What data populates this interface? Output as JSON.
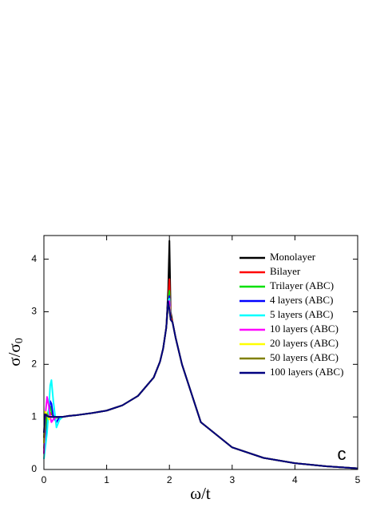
{
  "chart_data": {
    "type": "line",
    "x_label": "ω/t",
    "y_label": {
      "text": "σ/σ",
      "subscript": "0"
    },
    "annotation": "c",
    "legend": "upper right",
    "xlim": [
      0,
      5
    ],
    "xticks": [
      0,
      1,
      2,
      3,
      4,
      5
    ],
    "ylim": [
      0,
      4.45
    ],
    "yticks": [
      0,
      1,
      2,
      3,
      4
    ],
    "x": [
      0,
      0.02,
      0.05,
      0.08,
      0.1,
      0.12,
      0.15,
      0.2,
      0.25,
      0.3,
      0.4,
      0.5,
      0.75,
      1,
      1.25,
      1.5,
      1.75,
      1.85,
      1.9,
      1.95,
      1.98,
      2.0,
      2.02,
      2.05,
      2.1,
      2.2,
      2.5,
      3,
      3.5,
      4,
      4.5,
      5
    ],
    "series": [
      {
        "name": "Monolayer",
        "color": "#000000",
        "values": [
          1,
          1,
          1,
          1,
          1,
          1,
          1,
          1,
          1,
          1.0,
          1.02,
          1.03,
          1.07,
          1.12,
          1.22,
          1.4,
          1.75,
          2.05,
          2.3,
          2.7,
          3.4,
          4.35,
          3.0,
          2.8,
          2.5,
          2.0,
          0.9,
          0.42,
          0.22,
          0.12,
          0.06,
          0.02
        ]
      },
      {
        "name": "Bilayer",
        "color": "#ff0000",
        "values": [
          0.5,
          0.8,
          1.05,
          1.1,
          1.08,
          1.05,
          1.02,
          1.0,
          1.0,
          1.0,
          1.02,
          1.03,
          1.07,
          1.12,
          1.22,
          1.4,
          1.75,
          2.05,
          2.3,
          2.7,
          3.2,
          3.62,
          2.9,
          2.8,
          2.5,
          2.0,
          0.9,
          0.42,
          0.22,
          0.12,
          0.06,
          0.02
        ]
      },
      {
        "name": "Trilayer (ABC)",
        "color": "#00e000",
        "values": [
          0.4,
          0.7,
          1.0,
          1.15,
          1.2,
          1.1,
          1.0,
          0.98,
          1.0,
          1.0,
          1.02,
          1.03,
          1.07,
          1.12,
          1.22,
          1.4,
          1.75,
          2.05,
          2.3,
          2.7,
          3.2,
          3.4,
          2.85,
          2.8,
          2.5,
          2.0,
          0.9,
          0.42,
          0.22,
          0.12,
          0.06,
          0.02
        ]
      },
      {
        "name": "4 layers (ABC)",
        "color": "#0000ff",
        "values": [
          0.3,
          0.5,
          0.8,
          1.1,
          1.3,
          1.25,
          1.0,
          0.9,
          1.0,
          1.0,
          1.02,
          1.03,
          1.07,
          1.12,
          1.22,
          1.4,
          1.75,
          2.05,
          2.3,
          2.7,
          3.2,
          3.3,
          2.85,
          2.8,
          2.5,
          2.0,
          0.9,
          0.42,
          0.22,
          0.12,
          0.06,
          0.02
        ]
      },
      {
        "name": "5 layers (ABC)",
        "color": "#00ffff",
        "values": [
          0.2,
          0.4,
          0.7,
          1.2,
          1.6,
          1.7,
          1.3,
          0.8,
          0.95,
          1.0,
          1.02,
          1.03,
          1.07,
          1.12,
          1.22,
          1.4,
          1.75,
          2.05,
          2.3,
          2.7,
          3.2,
          3.25,
          2.85,
          2.8,
          2.5,
          2.0,
          0.9,
          0.42,
          0.22,
          0.12,
          0.06,
          0.02
        ]
      },
      {
        "name": "10 layers (ABC)",
        "color": "#ff00ff",
        "values": [
          0.3,
          1.0,
          1.38,
          1.2,
          1.0,
          0.9,
          0.95,
          1.0,
          1.0,
          1.0,
          1.02,
          1.03,
          1.07,
          1.12,
          1.22,
          1.4,
          1.75,
          2.05,
          2.3,
          2.7,
          3.2,
          3.2,
          2.85,
          2.8,
          2.5,
          2.0,
          0.9,
          0.42,
          0.22,
          0.12,
          0.06,
          0.02
        ]
      },
      {
        "name": "20 layers (ABC)",
        "color": "#ffff00",
        "values": [
          0.5,
          1.1,
          1.05,
          0.95,
          1.0,
          1.0,
          1.0,
          1.0,
          1.0,
          1.0,
          1.02,
          1.03,
          1.07,
          1.12,
          1.22,
          1.4,
          1.75,
          2.05,
          2.3,
          2.7,
          3.15,
          3.1,
          2.85,
          2.8,
          2.5,
          2.0,
          0.9,
          0.42,
          0.22,
          0.12,
          0.06,
          0.02
        ]
      },
      {
        "name": "50 layers (ABC)",
        "color": "#808000",
        "values": [
          0.6,
          1.05,
          1.05,
          1.0,
          1.0,
          1.0,
          1.0,
          1.0,
          1.0,
          1.0,
          1.02,
          1.03,
          1.07,
          1.12,
          1.22,
          1.4,
          1.75,
          2.05,
          2.3,
          2.7,
          3.15,
          3.05,
          2.85,
          2.8,
          2.5,
          2.0,
          0.9,
          0.42,
          0.22,
          0.12,
          0.06,
          0.02
        ]
      },
      {
        "name": "100 layers (ABC)",
        "color": "#000080",
        "values": [
          0.7,
          1.05,
          1.02,
          1.0,
          1.0,
          1.0,
          1.0,
          1.0,
          1.0,
          1.0,
          1.02,
          1.03,
          1.07,
          1.12,
          1.22,
          1.4,
          1.75,
          2.05,
          2.3,
          2.7,
          3.2,
          3.05,
          2.85,
          2.8,
          2.5,
          2.0,
          0.9,
          0.42,
          0.22,
          0.12,
          0.06,
          0.02
        ]
      }
    ]
  }
}
